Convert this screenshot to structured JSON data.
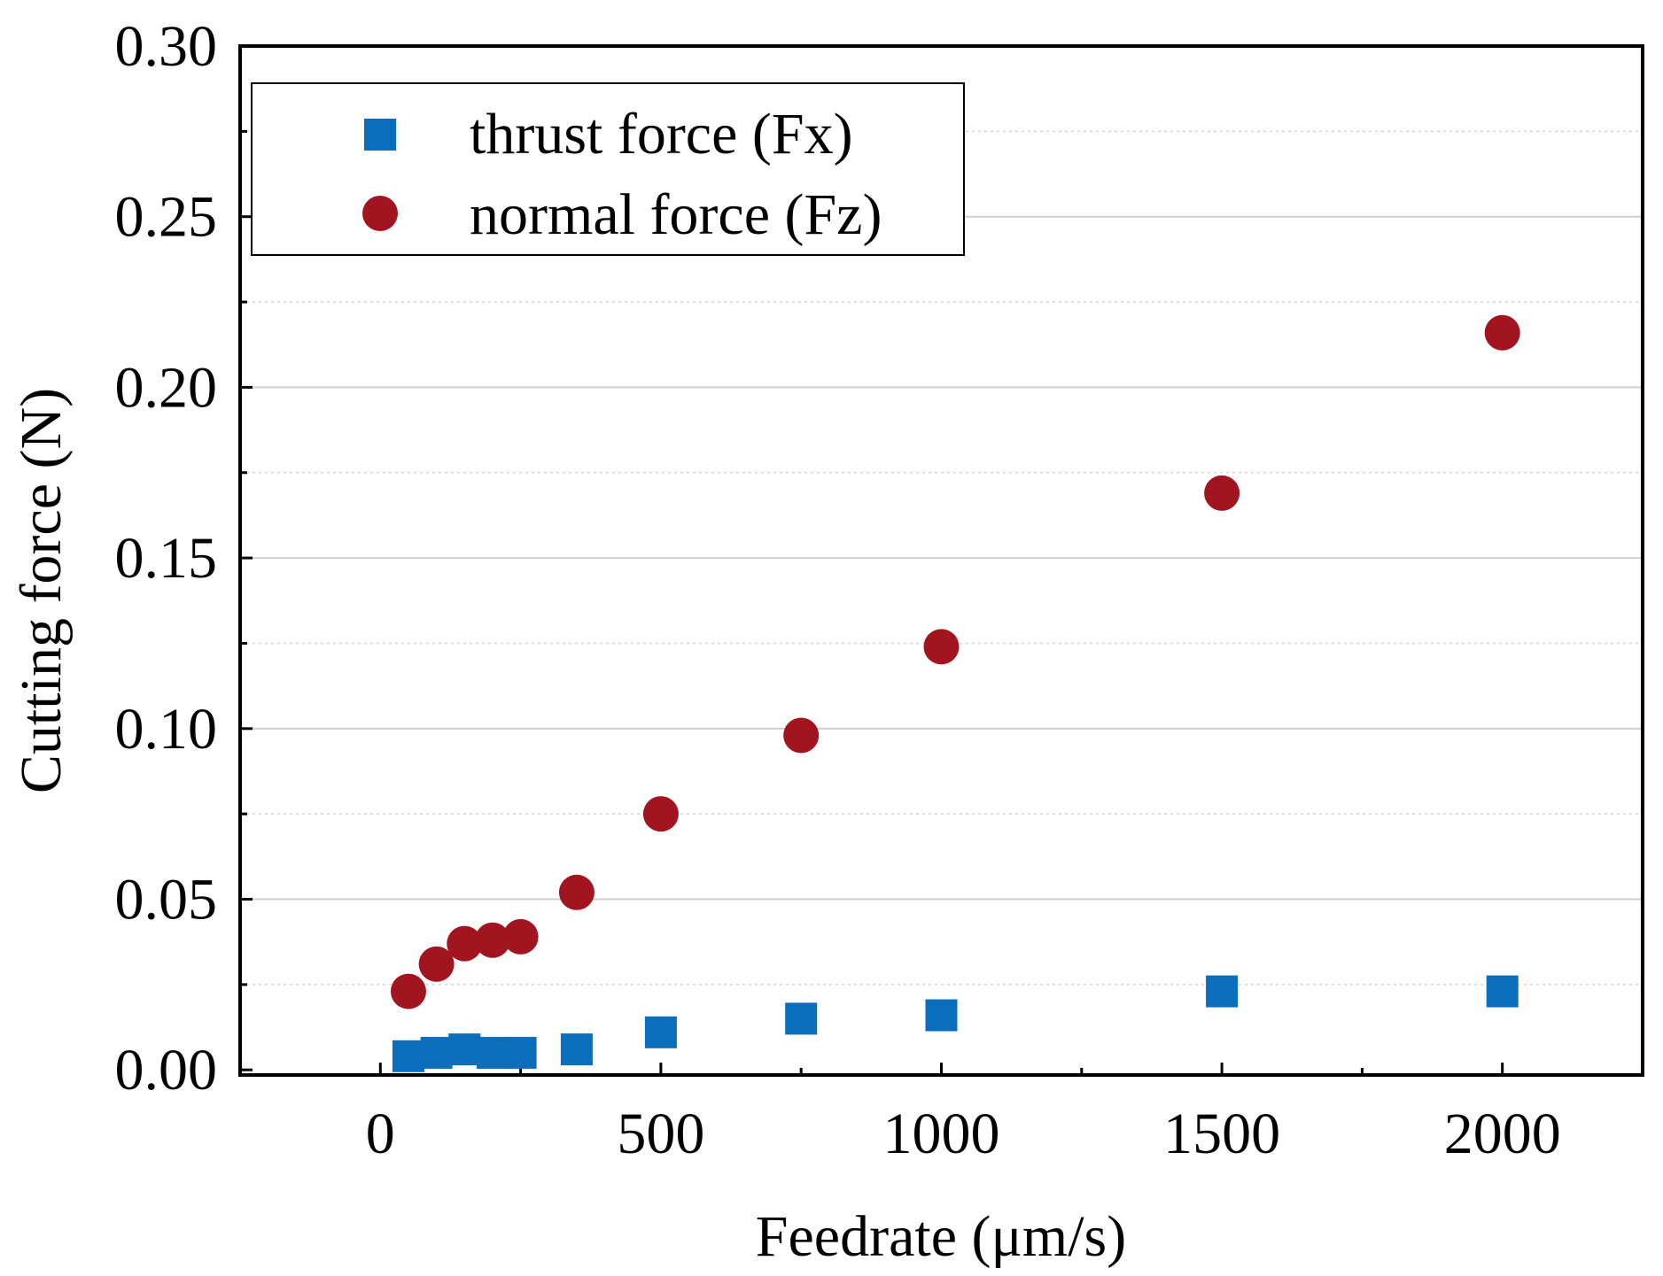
{
  "chart_data": {
    "type": "scatter",
    "xlabel": "Feedrate (μm/s)",
    "ylabel": "Cutting force (N)",
    "xlim": [
      -250,
      2250
    ],
    "ylim": [
      -0.0015,
      0.3
    ],
    "x_ticks": [
      0,
      500,
      1000,
      1500,
      2000
    ],
    "x_tick_labels": [
      "0",
      "500",
      "1000",
      "1500",
      "2000"
    ],
    "y_ticks": [
      0.0,
      0.05,
      0.1,
      0.15,
      0.2,
      0.25,
      0.3
    ],
    "y_tick_labels": [
      "0.00",
      "0.05",
      "0.10",
      "0.15",
      "0.20",
      "0.25",
      "0.30"
    ],
    "grid": "horizontal-major-and-minor",
    "legend": "top-left",
    "series": [
      {
        "name": "thrust force (Fx)",
        "marker": "square",
        "color": "#0a6ebd",
        "x": [
          50,
          100,
          150,
          200,
          250,
          350,
          500,
          750,
          1000,
          1500,
          2000
        ],
        "y": [
          0.004,
          0.005,
          0.006,
          0.005,
          0.005,
          0.006,
          0.011,
          0.015,
          0.016,
          0.023,
          0.023
        ]
      },
      {
        "name": "normal force (Fz)",
        "marker": "circle",
        "color": "#a31421",
        "x": [
          50,
          100,
          150,
          200,
          250,
          350,
          500,
          750,
          1000,
          1500,
          2000
        ],
        "y": [
          0.023,
          0.031,
          0.037,
          0.038,
          0.039,
          0.052,
          0.075,
          0.098,
          0.124,
          0.169,
          0.216
        ]
      }
    ]
  }
}
